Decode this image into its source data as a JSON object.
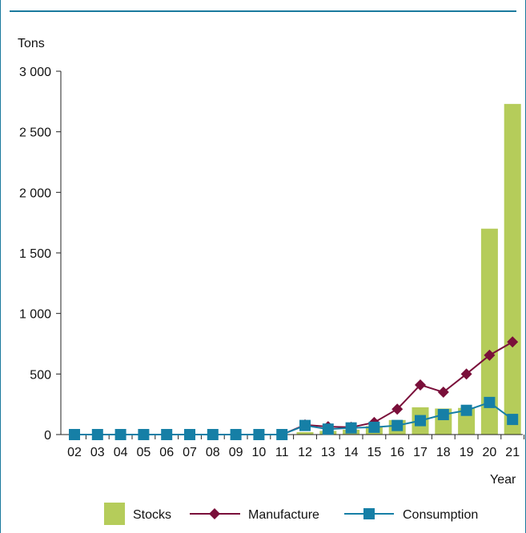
{
  "chart_data": {
    "type": "bar",
    "title": "",
    "ylabel": "Tons",
    "xlabel": "Year",
    "ylim": [
      0,
      3000
    ],
    "yticks": [
      0,
      500,
      1000,
      1500,
      2000,
      2500,
      3000
    ],
    "ytick_labels": [
      "0",
      "500",
      "1 000",
      "1 500",
      "2 000",
      "2 500",
      "3 000"
    ],
    "categories": [
      "02",
      "03",
      "04",
      "05",
      "06",
      "07",
      "08",
      "09",
      "10",
      "11",
      "12",
      "13",
      "14",
      "15",
      "16",
      "17",
      "18",
      "19",
      "20",
      "21"
    ],
    "series": [
      {
        "name": "Stocks",
        "kind": "bar",
        "color": "#b5cc5a",
        "values": [
          0,
          0,
          0,
          0,
          0,
          0,
          0,
          0,
          0,
          0,
          20,
          30,
          40,
          70,
          120,
          225,
          215,
          220,
          1700,
          2730
        ]
      },
      {
        "name": "Manufacture",
        "kind": "line",
        "marker": "diamond",
        "color": "#7a0f3a",
        "values": [
          0,
          0,
          0,
          0,
          0,
          0,
          0,
          0,
          0,
          0,
          80,
          65,
          60,
          100,
          210,
          410,
          350,
          500,
          655,
          765
        ]
      },
      {
        "name": "Consumption",
        "kind": "line",
        "marker": "square",
        "color": "#167fa6",
        "values": [
          0,
          0,
          0,
          0,
          0,
          0,
          0,
          0,
          0,
          0,
          75,
          45,
          55,
          60,
          75,
          115,
          165,
          200,
          265,
          125
        ]
      }
    ],
    "legend": {
      "position": "bottom"
    },
    "grid": false
  }
}
